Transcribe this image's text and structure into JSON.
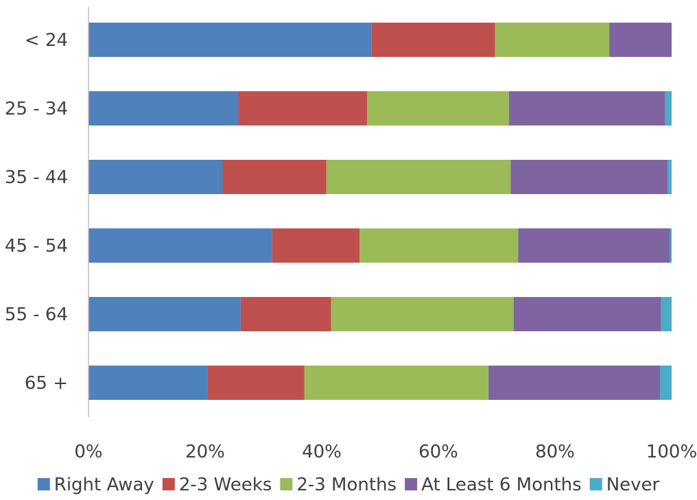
{
  "chart_data": {
    "type": "bar",
    "orientation": "horizontal",
    "stacked": "percent",
    "categories": [
      "< 24",
      "25 - 34",
      "35 - 44",
      "45 - 54",
      "55 - 64",
      "65 +"
    ],
    "x_ticks": [
      "0%",
      "20%",
      "40%",
      "60%",
      "80%",
      "100%"
    ],
    "xlim": [
      0,
      100
    ],
    "grid": false,
    "legend_position": "bottom",
    "series": [
      {
        "name": "Right Away",
        "color": "#4F81BD",
        "values": [
          48.5,
          25.7,
          23.0,
          31.5,
          26.1,
          20.4
        ]
      },
      {
        "name": "2-3 Weeks",
        "color": "#C0504D",
        "values": [
          21.2,
          22.1,
          17.8,
          15.0,
          15.5,
          16.6
        ]
      },
      {
        "name": "2-3 Months",
        "color": "#9BBB59",
        "values": [
          19.6,
          24.3,
          31.6,
          27.2,
          31.3,
          31.6
        ]
      },
      {
        "name": "At Least 6 Months",
        "color": "#8064A2",
        "values": [
          10.7,
          26.8,
          26.9,
          26.0,
          25.3,
          29.4
        ]
      },
      {
        "name": "Never",
        "color": "#4BACC6",
        "values": [
          0.0,
          1.1,
          0.7,
          0.3,
          1.8,
          2.0
        ]
      }
    ]
  }
}
